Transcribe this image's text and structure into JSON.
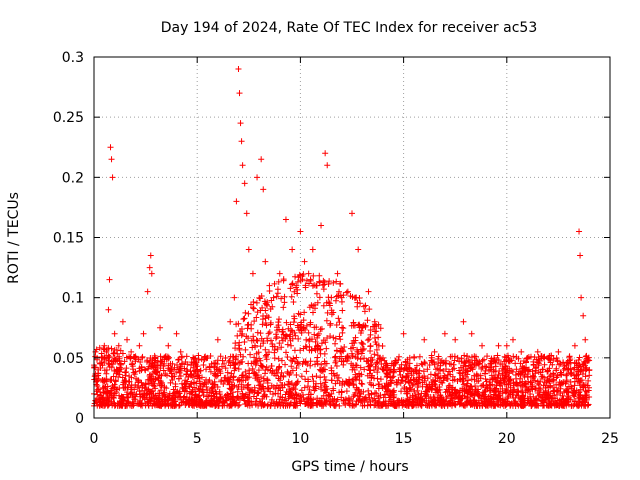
{
  "chart_data": {
    "type": "scatter",
    "title": "Day 194 of 2024, Rate Of TEC Index for receiver ac53",
    "xlabel": "GPS time / hours",
    "ylabel": "ROTI / TECUs",
    "xlim": [
      0,
      25
    ],
    "ylim": [
      0,
      0.3
    ],
    "x_ticks": [
      "0",
      "5",
      "10",
      "15",
      "20",
      "25"
    ],
    "y_ticks": [
      "0",
      "0.05",
      "0.1",
      "0.15",
      "0.2",
      "0.25",
      "0.3"
    ],
    "grid": true,
    "legend": "none",
    "marker": "plus",
    "color": "#ff0000",
    "series": [
      {
        "name": "",
        "x": [
          0.0,
          0.05,
          0.1,
          0.15,
          0.2,
          0.3,
          0.4,
          0.5,
          0.6,
          0.7,
          0.75,
          0.8,
          0.85,
          0.9,
          1.0,
          1.2,
          1.4,
          1.6,
          1.8,
          2.0,
          2.2,
          2.4,
          2.6,
          2.7,
          2.75,
          2.8,
          3.0,
          3.2,
          3.4,
          3.6,
          3.8,
          4.0,
          4.2,
          4.5,
          5.0,
          5.5,
          6.0,
          6.3,
          6.6,
          6.8,
          6.9,
          7.0,
          7.05,
          7.1,
          7.15,
          7.2,
          7.3,
          7.4,
          7.5,
          7.7,
          7.9,
          8.1,
          8.2,
          8.3,
          8.5,
          8.7,
          9.0,
          9.3,
          9.6,
          9.8,
          10.0,
          10.2,
          10.4,
          10.6,
          10.8,
          11.0,
          11.2,
          11.3,
          11.5,
          11.8,
          12.0,
          12.3,
          12.5,
          12.8,
          13.0,
          13.3,
          13.6,
          13.8,
          14.0,
          14.3,
          14.6,
          15.0,
          15.3,
          15.6,
          16.0,
          16.5,
          17.0,
          17.5,
          17.9,
          18.3,
          18.8,
          19.2,
          19.6,
          20.0,
          20.3,
          20.7,
          21.0,
          21.5,
          22.0,
          22.5,
          23.0,
          23.3,
          23.5,
          23.55,
          23.6,
          23.7,
          23.8,
          24.0
        ],
        "y": [
          0.02,
          0.035,
          0.03,
          0.05,
          0.04,
          0.045,
          0.05,
          0.06,
          0.055,
          0.09,
          0.115,
          0.225,
          0.215,
          0.2,
          0.07,
          0.06,
          0.08,
          0.065,
          0.055,
          0.05,
          0.06,
          0.07,
          0.105,
          0.125,
          0.135,
          0.12,
          0.04,
          0.075,
          0.045,
          0.06,
          0.045,
          0.07,
          0.055,
          0.04,
          0.035,
          0.05,
          0.065,
          0.045,
          0.08,
          0.1,
          0.18,
          0.29,
          0.27,
          0.245,
          0.23,
          0.21,
          0.195,
          0.17,
          0.14,
          0.12,
          0.2,
          0.215,
          0.19,
          0.13,
          0.11,
          0.1,
          0.12,
          0.165,
          0.14,
          0.11,
          0.155,
          0.13,
          0.12,
          0.14,
          0.11,
          0.16,
          0.22,
          0.21,
          0.1,
          0.12,
          0.1,
          0.105,
          0.17,
          0.14,
          0.075,
          0.105,
          0.08,
          0.06,
          0.05,
          0.04,
          0.045,
          0.07,
          0.05,
          0.04,
          0.065,
          0.055,
          0.07,
          0.065,
          0.08,
          0.07,
          0.06,
          0.045,
          0.06,
          0.06,
          0.065,
          0.055,
          0.05,
          0.055,
          0.05,
          0.055,
          0.045,
          0.06,
          0.155,
          0.135,
          0.1,
          0.085,
          0.065,
          0.04
        ]
      }
    ]
  }
}
